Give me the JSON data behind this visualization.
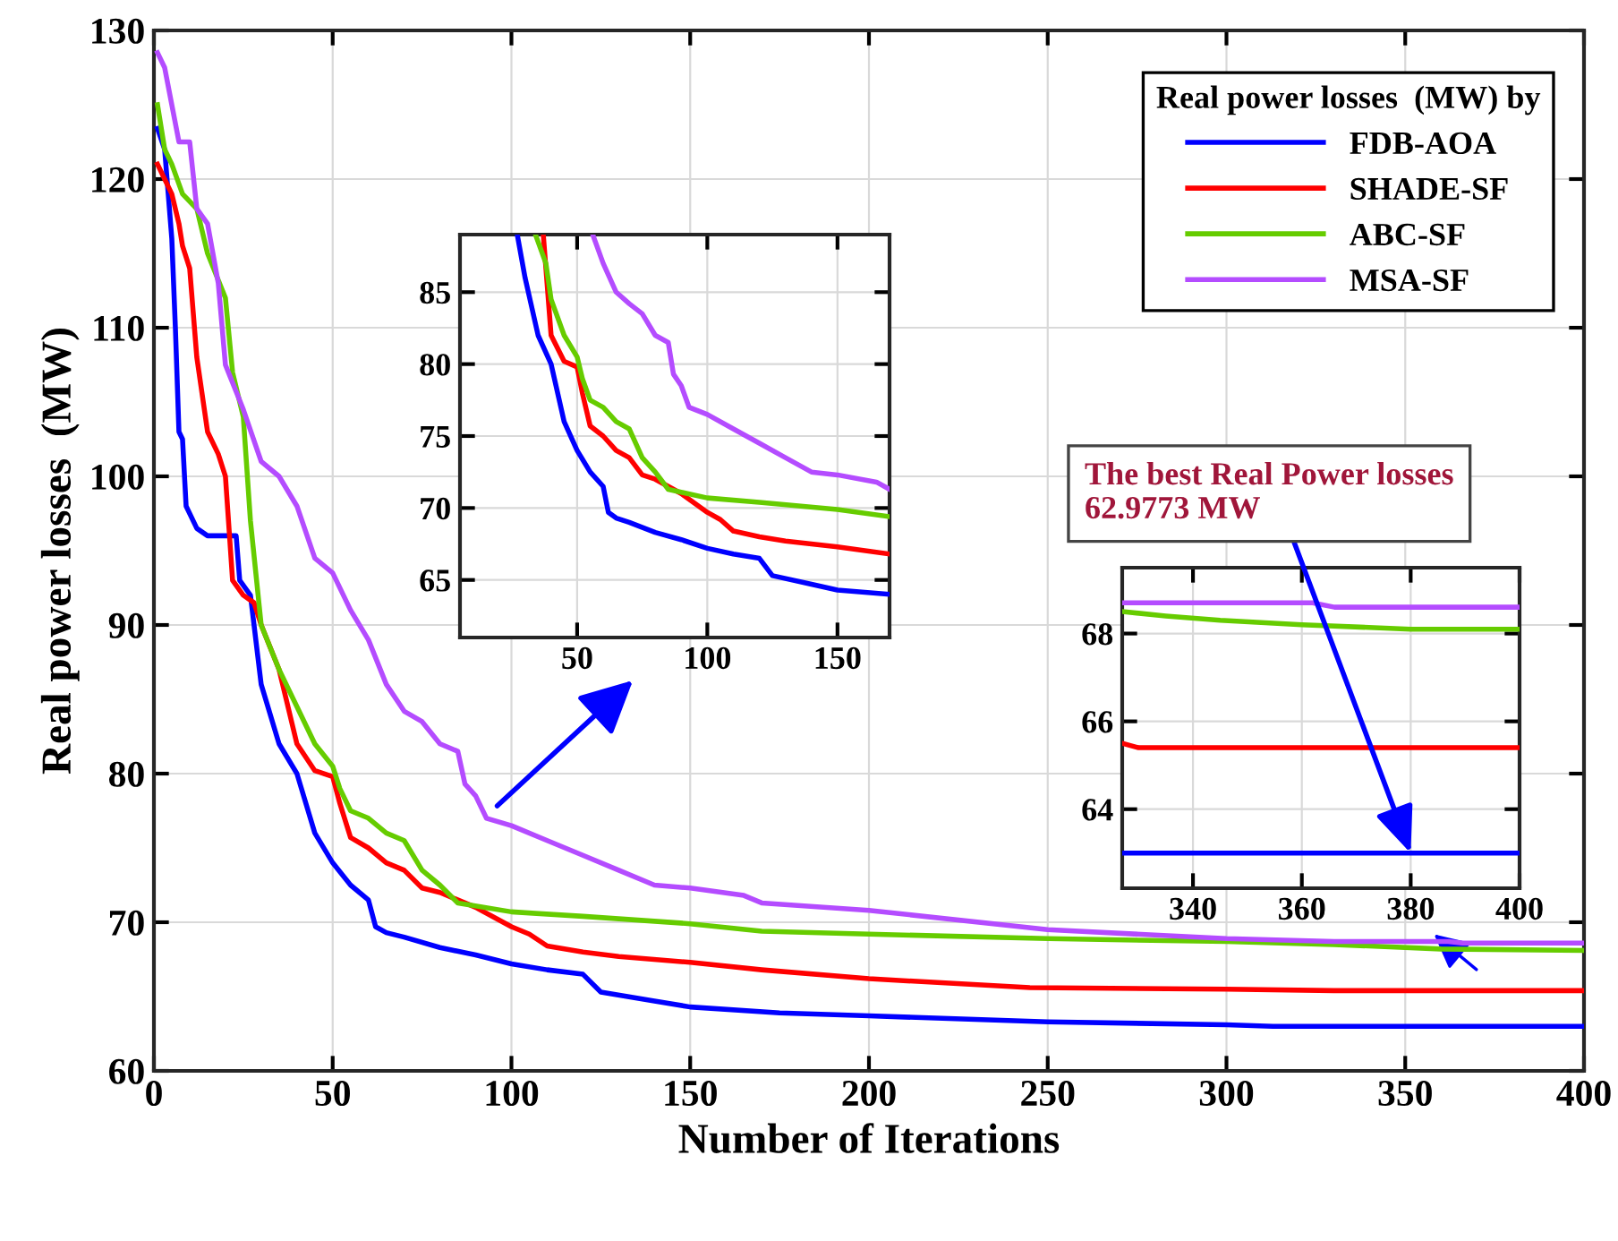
{
  "chart_data": [
    {
      "type": "line",
      "xlabel": "Number of Iterations",
      "ylabel": "Real power losses  (MW)",
      "legend_title": "Real power losses  (MW) by",
      "legend": "top right",
      "grid": true,
      "xlim": [
        0,
        400
      ],
      "ylim": [
        60,
        130
      ],
      "xticks": [
        0,
        50,
        100,
        150,
        200,
        250,
        300,
        350,
        400
      ],
      "yticks": [
        60,
        70,
        80,
        90,
        100,
        110,
        120,
        130
      ],
      "series": [
        {
          "name": "FDB-AOA",
          "color": "#0000ff",
          "x": [
            1,
            3,
            5,
            6,
            7,
            8,
            9,
            12,
            15,
            20,
            23,
            24,
            27,
            30,
            35,
            40,
            45,
            50,
            55,
            60,
            62,
            65,
            70,
            80,
            90,
            100,
            110,
            120,
            125,
            140,
            150,
            175,
            200,
            250,
            300,
            313,
            400
          ],
          "values": [
            123.4,
            122,
            116,
            110,
            103,
            102.5,
            98,
            96.5,
            96,
            96,
            96,
            93,
            92,
            86,
            82,
            80,
            76,
            74,
            72.5,
            71.5,
            69.7,
            69.3,
            69,
            68.3,
            67.8,
            67.2,
            66.8,
            66.5,
            65.3,
            64.7,
            64.3,
            63.9,
            63.7,
            63.3,
            63.1,
            63.0,
            63.0
          ]
        },
        {
          "name": "SHADE-SF",
          "color": "#ff0000",
          "x": [
            1,
            3,
            5,
            7,
            8,
            10,
            12,
            15,
            18,
            20,
            22,
            25,
            28,
            30,
            35,
            40,
            45,
            50,
            52,
            55,
            60,
            65,
            70,
            75,
            80,
            90,
            100,
            105,
            110,
            120,
            130,
            150,
            170,
            200,
            245,
            300,
            330,
            400
          ],
          "values": [
            121,
            120,
            119,
            117,
            115.5,
            114,
            108,
            103,
            101.5,
            100,
            93,
            92,
            91.5,
            90,
            87,
            82,
            80.2,
            79.8,
            78,
            75.7,
            75,
            74,
            73.5,
            72.3,
            72,
            71,
            69.7,
            69.2,
            68.4,
            68,
            67.7,
            67.3,
            66.8,
            66.2,
            65.6,
            65.5,
            65.4,
            65.4
          ]
        },
        {
          "name": "ABC-SF",
          "color": "#66cc00",
          "x": [
            1,
            3,
            5,
            8,
            12,
            15,
            20,
            22,
            25,
            27,
            30,
            35,
            40,
            45,
            50,
            52,
            55,
            60,
            65,
            70,
            75,
            80,
            85,
            100,
            120,
            150,
            170,
            200,
            250,
            300,
            330,
            360,
            400
          ],
          "values": [
            125,
            122,
            121,
            119,
            118,
            115,
            112,
            107,
            104,
            97,
            90,
            87,
            84.5,
            82,
            80.5,
            79,
            77.5,
            77,
            76,
            75.5,
            73.5,
            72.5,
            71.3,
            70.7,
            70.4,
            69.9,
            69.4,
            69.2,
            68.9,
            68.7,
            68.5,
            68.2,
            68.1
          ]
        },
        {
          "name": "MSA-SF",
          "color": "#b44cff",
          "x": [
            1,
            3,
            5,
            7,
            10,
            12,
            15,
            18,
            20,
            25,
            30,
            35,
            40,
            45,
            50,
            55,
            60,
            65,
            70,
            75,
            80,
            85,
            87,
            90,
            93,
            100,
            110,
            120,
            130,
            140,
            150,
            165,
            170,
            200,
            250,
            300,
            330,
            362,
            366,
            400
          ],
          "values": [
            128.5,
            127.5,
            125,
            122.5,
            122.5,
            118,
            117,
            113,
            107.5,
            104.5,
            101,
            100,
            98,
            94.5,
            93.5,
            91,
            89,
            86,
            84.2,
            83.5,
            82,
            81.5,
            79.3,
            78.5,
            77,
            76.5,
            75.5,
            74.5,
            73.5,
            72.5,
            72.3,
            71.8,
            71.3,
            70.8,
            69.5,
            68.9,
            68.7,
            68.7,
            68.6,
            68.6
          ]
        }
      ]
    },
    {
      "type": "line",
      "grid": true,
      "xlim": [
        5,
        170
      ],
      "ylim": [
        61,
        89
      ],
      "xticks": [
        50,
        100,
        150
      ],
      "yticks": [
        65,
        70,
        75,
        80,
        85
      ],
      "series": [
        {
          "color": "#0000ff",
          "x": [
            27,
            30,
            35,
            40,
            45,
            50,
            55,
            60,
            62,
            65,
            70,
            80,
            90,
            100,
            110,
            120,
            125,
            140,
            150,
            170
          ],
          "values": [
            89,
            86,
            82,
            80,
            76,
            74,
            72.5,
            71.5,
            69.7,
            69.3,
            69,
            68.3,
            67.8,
            67.2,
            66.8,
            66.5,
            65.3,
            64.7,
            64.3,
            64.0
          ]
        },
        {
          "color": "#ff0000",
          "x": [
            37,
            40,
            45,
            50,
            52,
            55,
            60,
            65,
            70,
            75,
            80,
            90,
            100,
            105,
            110,
            120,
            130,
            150,
            170
          ],
          "values": [
            89,
            82,
            80.2,
            79.8,
            78,
            75.7,
            75,
            74,
            73.5,
            72.3,
            72,
            71,
            69.7,
            69.2,
            68.4,
            68,
            67.7,
            67.3,
            66.8
          ]
        },
        {
          "color": "#66cc00",
          "x": [
            34,
            38,
            40,
            45,
            50,
            52,
            55,
            60,
            65,
            70,
            75,
            80,
            85,
            100,
            120,
            150,
            170
          ],
          "values": [
            89,
            87,
            84.5,
            82,
            80.5,
            79,
            77.5,
            77,
            76,
            75.5,
            73.5,
            72.5,
            71.3,
            70.7,
            70.4,
            69.9,
            69.4
          ]
        },
        {
          "color": "#b44cff",
          "x": [
            56,
            60,
            65,
            70,
            75,
            80,
            85,
            87,
            90,
            93,
            100,
            110,
            120,
            130,
            140,
            150,
            165,
            170
          ],
          "values": [
            89,
            87,
            85,
            84.2,
            83.5,
            82,
            81.5,
            79.3,
            78.5,
            77,
            76.5,
            75.5,
            74.5,
            73.5,
            72.5,
            72.3,
            71.8,
            71.3
          ]
        }
      ]
    },
    {
      "type": "line",
      "grid": true,
      "xlim": [
        327,
        400
      ],
      "ylim": [
        62.2,
        69.5
      ],
      "xticks": [
        340,
        360,
        380,
        400
      ],
      "yticks": [
        64,
        66,
        68
      ],
      "annotations": [
        {
          "text": "The best Real Power losses\n62.9773 MW",
          "x": 380,
          "y": 63.0
        }
      ],
      "series": [
        {
          "color": "#0000ff",
          "x": [
            327,
            400
          ],
          "values": [
            63.0,
            63.0
          ]
        },
        {
          "color": "#ff0000",
          "x": [
            327,
            330,
            400
          ],
          "values": [
            65.5,
            65.4,
            65.4
          ]
        },
        {
          "color": "#66cc00",
          "x": [
            327,
            335,
            345,
            360,
            380,
            400
          ],
          "values": [
            68.5,
            68.4,
            68.3,
            68.2,
            68.1,
            68.1
          ]
        },
        {
          "color": "#b44cff",
          "x": [
            327,
            362,
            366,
            400
          ],
          "values": [
            68.7,
            68.7,
            68.6,
            68.6
          ]
        }
      ]
    }
  ]
}
